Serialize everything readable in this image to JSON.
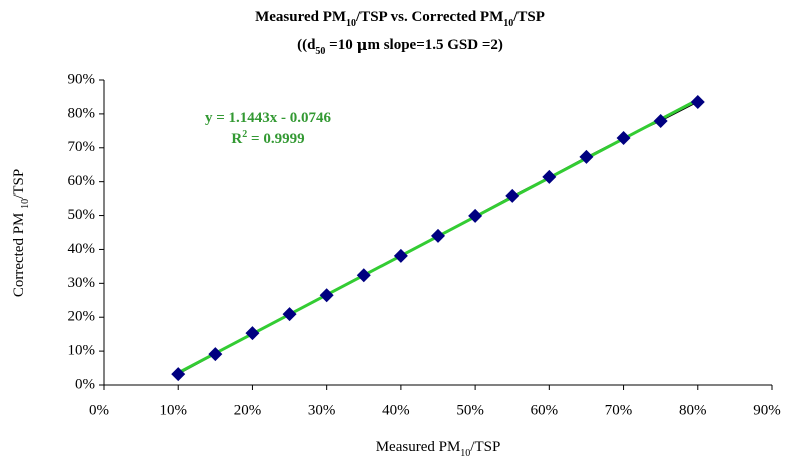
{
  "chart_data": {
    "type": "scatter",
    "title": [
      {
        "text": "Measured PM"
      },
      {
        "text": "10",
        "sub": true
      },
      {
        "text": "/TSP vs. Corrected PM"
      },
      {
        "text": "10",
        "sub": true
      },
      {
        "text": "/TSP"
      }
    ],
    "subtitle": [
      {
        "text": "((d"
      },
      {
        "text": "50",
        "sub": true
      },
      {
        "text": " =10 "
      },
      {
        "text": "μ",
        "mu": true
      },
      {
        "text": "m slope=1.5 GSD =2)"
      }
    ],
    "x_label": [
      {
        "text": "Measured PM"
      },
      {
        "text": "10",
        "sub": true
      },
      {
        "text": "/TSP"
      }
    ],
    "y_label": [
      {
        "text": "Corrected PM "
      },
      {
        "text": "10",
        "sub": true
      },
      {
        "text": "/TSP"
      }
    ],
    "annotation": [
      [
        {
          "text": "y = 1.1443x - 0.0746"
        }
      ],
      [
        {
          "text": "R"
        },
        {
          "text": "2",
          "sup": true
        },
        {
          "text": " = 0.9999"
        }
      ]
    ],
    "x": [
      10,
      15,
      20,
      25,
      30,
      35,
      40,
      45,
      50,
      55,
      60,
      65,
      70,
      75,
      80
    ],
    "series": [
      {
        "color": "#000080",
        "line_color": "#000000",
        "values": [
          3.2,
          9.1,
          15.3,
          20.9,
          26.5,
          32.4,
          38.1,
          44.0,
          49.9,
          55.8,
          61.4,
          67.3,
          72.9,
          77.9,
          83.5
        ]
      }
    ],
    "trendline_color": "#33cc33",
    "annotation_color": "#339933",
    "xlim": [
      0,
      90
    ],
    "ylim": [
      0,
      90
    ],
    "xticks": [
      {
        "value": 0,
        "label": "0%"
      },
      {
        "value": 10,
        "label": "10%"
      },
      {
        "value": 20,
        "label": "20%"
      },
      {
        "value": 30,
        "label": "30%"
      },
      {
        "value": 40,
        "label": "40%"
      },
      {
        "value": 50,
        "label": "50%"
      },
      {
        "value": 60,
        "label": "60%"
      },
      {
        "value": 70,
        "label": "70%"
      },
      {
        "value": 80,
        "label": "80%"
      },
      {
        "value": 90,
        "label": "90%"
      }
    ],
    "yticks": [
      {
        "value": 0,
        "label": "0%"
      },
      {
        "value": 10,
        "label": "10%"
      },
      {
        "value": 20,
        "label": "20%"
      },
      {
        "value": 30,
        "label": "30%"
      },
      {
        "value": 40,
        "label": "40%"
      },
      {
        "value": 50,
        "label": "50%"
      },
      {
        "value": 60,
        "label": "60%"
      },
      {
        "value": 70,
        "label": "70%"
      },
      {
        "value": 80,
        "label": "80%"
      },
      {
        "value": 90,
        "label": "90%"
      }
    ],
    "grid": false
  }
}
